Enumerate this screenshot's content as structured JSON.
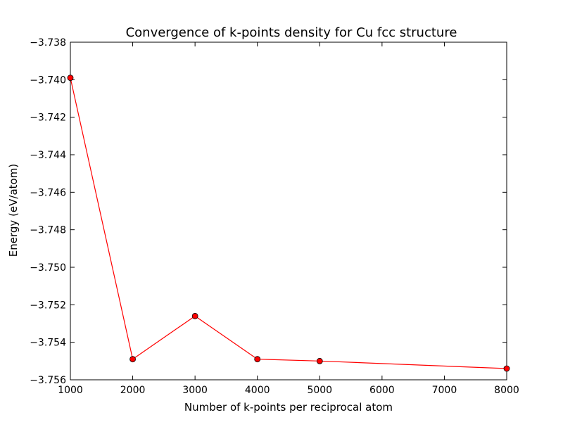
{
  "chart_data": {
    "type": "line",
    "title": "Convergence of k-points density for Cu fcc structure",
    "xlabel": "Number of k-points per reciprocal atom",
    "ylabel": "Energy (eV/atom)",
    "xlim": [
      1000,
      8000
    ],
    "ylim": [
      -3.756,
      -3.738
    ],
    "x_ticks": [
      "1000",
      "2000",
      "3000",
      "4000",
      "5000",
      "6000",
      "7000",
      "8000"
    ],
    "x_tick_values": [
      1000,
      2000,
      3000,
      4000,
      5000,
      6000,
      7000,
      8000
    ],
    "y_ticks": [
      "−3.738",
      "−3.740",
      "−3.742",
      "−3.744",
      "−3.746",
      "−3.748",
      "−3.750",
      "−3.752",
      "−3.754",
      "−3.756"
    ],
    "y_tick_values": [
      -3.738,
      -3.74,
      -3.742,
      -3.744,
      -3.746,
      -3.748,
      -3.75,
      -3.752,
      -3.754,
      -3.756
    ],
    "grid": false,
    "series": [
      {
        "color": "#ff0000",
        "marker_color": "#ff0000",
        "x": [
          1000,
          2000,
          3000,
          4000,
          5000,
          8000
        ],
        "y": [
          -3.7399,
          -3.7549,
          -3.7526,
          -3.7549,
          -3.755,
          -3.7554
        ]
      }
    ]
  }
}
